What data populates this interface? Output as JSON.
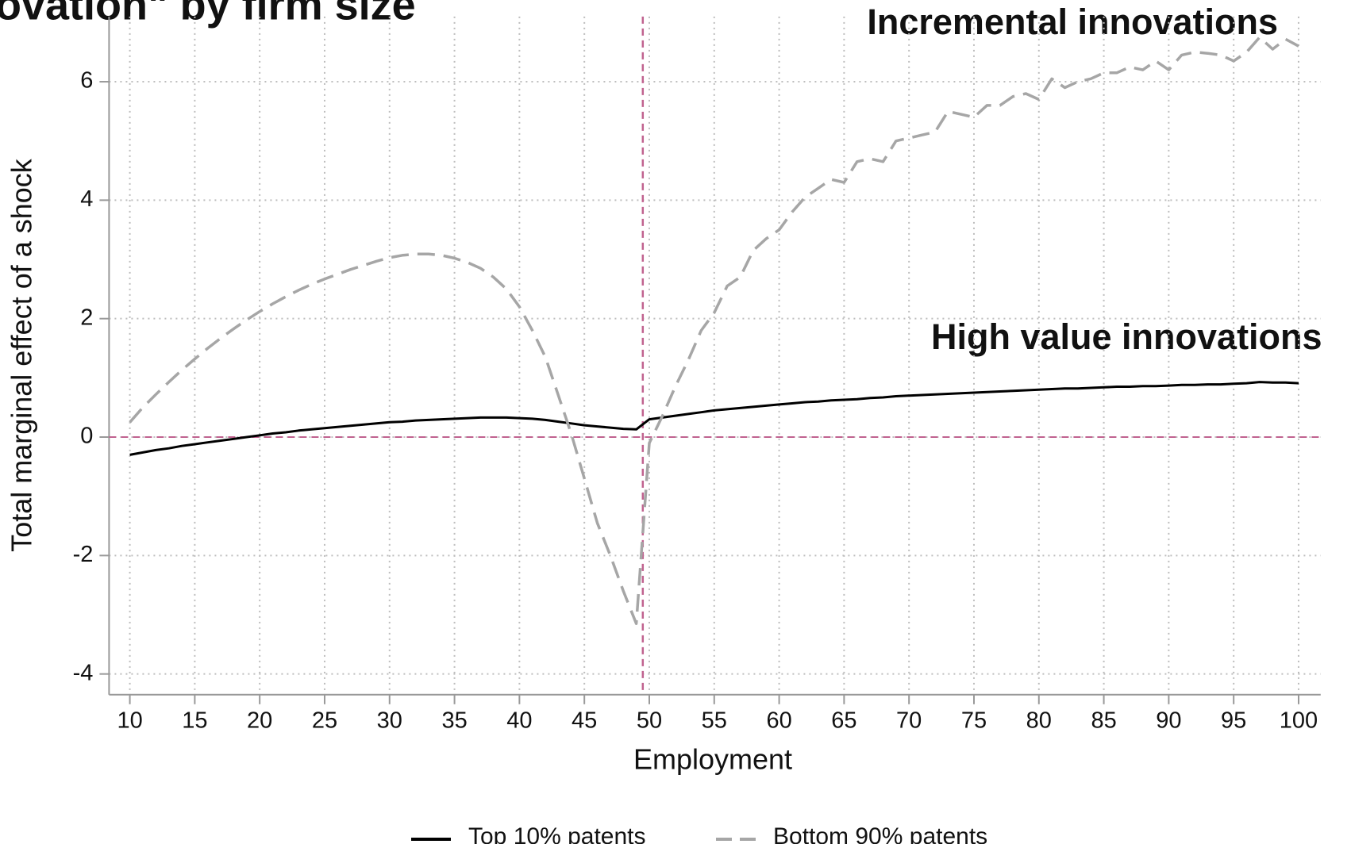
{
  "chart_data": {
    "type": "line",
    "title": "ovation\" by firm size",
    "x_label": "Employment",
    "y_label": "Total marginal effect of a shock",
    "annotations": [
      "Incremental innovations",
      "High value innovations"
    ],
    "x": [
      10,
      11,
      12,
      13,
      14,
      15,
      16,
      17,
      18,
      19,
      20,
      21,
      22,
      23,
      24,
      25,
      26,
      27,
      28,
      29,
      30,
      31,
      32,
      33,
      34,
      35,
      36,
      37,
      38,
      39,
      40,
      41,
      42,
      43,
      44,
      45,
      46,
      47,
      48,
      49,
      50,
      51,
      52,
      53,
      54,
      55,
      56,
      57,
      58,
      59,
      60,
      61,
      62,
      63,
      64,
      65,
      66,
      67,
      68,
      69,
      70,
      71,
      72,
      73,
      74,
      75,
      76,
      77,
      78,
      79,
      80,
      81,
      82,
      83,
      84,
      85,
      86,
      87,
      88,
      89,
      90,
      91,
      92,
      93,
      94,
      95,
      96,
      97,
      98,
      99,
      100
    ],
    "series": [
      {
        "name": "Top 10% patents",
        "color": "#000000",
        "dash": false,
        "values": [
          -0.3,
          -0.26,
          -0.22,
          -0.19,
          -0.15,
          -0.12,
          -0.09,
          -0.06,
          -0.03,
          0,
          0.03,
          0.06,
          0.08,
          0.11,
          0.13,
          0.15,
          0.17,
          0.19,
          0.21,
          0.23,
          0.25,
          0.26,
          0.28,
          0.29,
          0.3,
          0.31,
          0.32,
          0.33,
          0.33,
          0.33,
          0.32,
          0.31,
          0.29,
          0.26,
          0.23,
          0.2,
          0.18,
          0.16,
          0.14,
          0.13,
          0.3,
          0.33,
          0.36,
          0.39,
          0.42,
          0.45,
          0.47,
          0.49,
          0.51,
          0.53,
          0.55,
          0.57,
          0.59,
          0.6,
          0.62,
          0.63,
          0.64,
          0.66,
          0.67,
          0.69,
          0.7,
          0.71,
          0.72,
          0.73,
          0.74,
          0.75,
          0.76,
          0.77,
          0.78,
          0.79,
          0.8,
          0.81,
          0.82,
          0.82,
          0.83,
          0.84,
          0.85,
          0.85,
          0.86,
          0.86,
          0.87,
          0.88,
          0.88,
          0.89,
          0.89,
          0.9,
          0.91,
          0.93,
          0.92,
          0.92,
          0.91
        ]
      },
      {
        "name": "Bottom 90% patents",
        "color": "#a6a6a6",
        "dash": true,
        "values": [
          0.25,
          0.5,
          0.72,
          0.93,
          1.13,
          1.32,
          1.5,
          1.67,
          1.83,
          1.98,
          2.12,
          2.25,
          2.37,
          2.48,
          2.58,
          2.67,
          2.75,
          2.83,
          2.9,
          2.97,
          3.03,
          3.07,
          3.09,
          3.09,
          3.07,
          3.02,
          2.95,
          2.85,
          2.7,
          2.5,
          2.2,
          1.8,
          1.35,
          0.7,
          0.05,
          -0.7,
          -1.45,
          -2.0,
          -2.6,
          -3.15,
          -0.1,
          0.35,
          0.85,
          1.3,
          1.8,
          2.1,
          2.55,
          2.7,
          3.15,
          3.35,
          3.5,
          3.8,
          4.05,
          4.2,
          4.35,
          4.3,
          4.65,
          4.7,
          4.65,
          5.0,
          5.05,
          5.1,
          5.15,
          5.5,
          5.45,
          5.4,
          5.6,
          5.6,
          5.75,
          5.8,
          5.7,
          6.05,
          5.9,
          6.0,
          6.05,
          6.15,
          6.15,
          6.25,
          6.2,
          6.35,
          6.2,
          6.45,
          6.5,
          6.48,
          6.45,
          6.35,
          6.5,
          6.75,
          6.55,
          6.72,
          6.6
        ]
      }
    ],
    "xlim": [
      8.4,
      101.7
    ],
    "ylim": [
      -4.35,
      7.1
    ],
    "xticks": [
      10,
      15,
      20,
      25,
      30,
      35,
      40,
      45,
      50,
      55,
      60,
      65,
      70,
      75,
      80,
      85,
      90,
      95,
      100
    ],
    "yticks": [
      -4,
      -2,
      0,
      2,
      4,
      6
    ],
    "grid": true,
    "reference_lines": {
      "x": 49.5,
      "y": 0,
      "color": "#c0628f"
    },
    "legend": "bottom"
  }
}
